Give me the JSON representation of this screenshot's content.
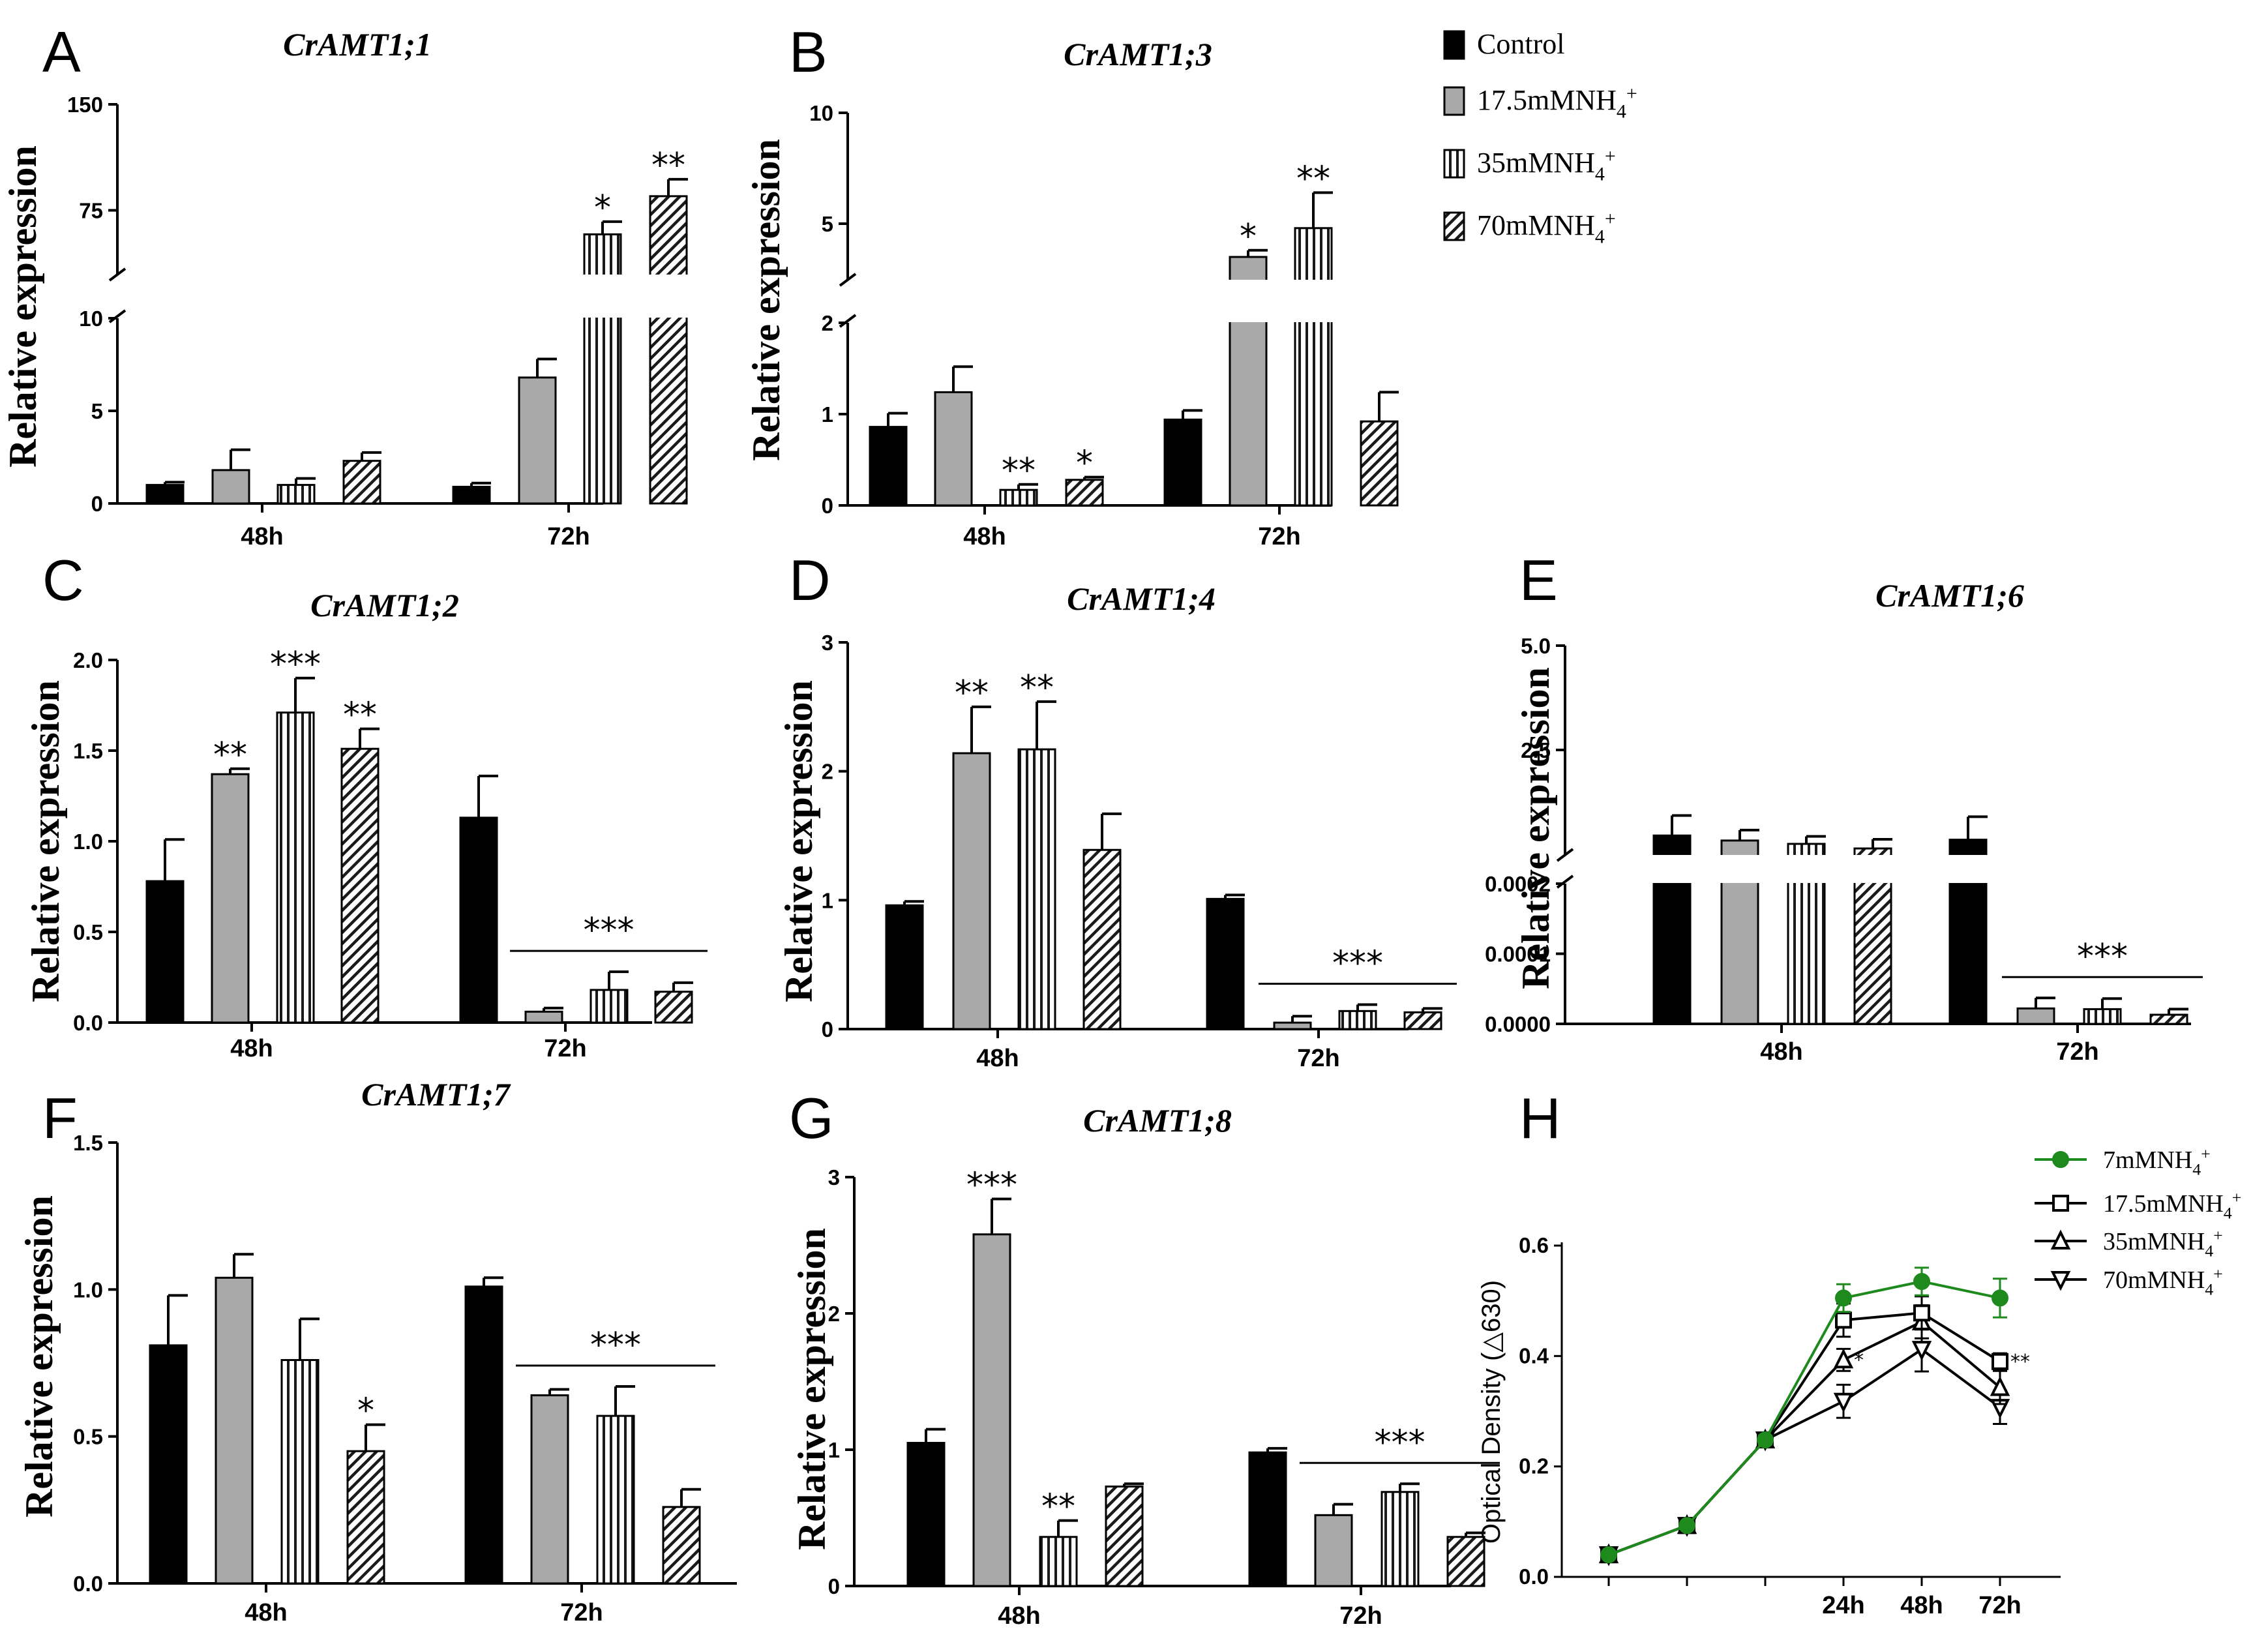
{
  "legend": {
    "items": [
      {
        "label": "Control",
        "fill": "solid-black"
      },
      {
        "label": "17.5mMNH4+",
        "fill": "gray"
      },
      {
        "label": "35mMNH4+",
        "fill": "vertical-stripes"
      },
      {
        "label": "70mMNH4+",
        "fill": "diagonal-stripes"
      }
    ]
  },
  "colors": {
    "control": "#000000",
    "gray": "#a9a9a9",
    "green": "#1e8a1e"
  },
  "chart_data": [
    {
      "panel": "A",
      "type": "bar",
      "title": "CrAMT1;1",
      "ylabel": "Relative expression",
      "categories": [
        "48h",
        "72h"
      ],
      "broken_axis": {
        "low_range": [
          0,
          10
        ],
        "high_range": [
          30,
          150
        ],
        "low_ticks": [
          "0",
          "5",
          "10"
        ],
        "high_ticks": [
          "75",
          "150"
        ]
      },
      "series": [
        {
          "name": "Control",
          "values": [
            1.0,
            0.9
          ],
          "errors": [
            0.15,
            0.2
          ]
        },
        {
          "name": "17.5mMNH4+",
          "values": [
            1.8,
            6.8
          ],
          "errors": [
            1.1,
            1.0
          ]
        },
        {
          "name": "35mMNH4+",
          "values": [
            1.0,
            58
          ],
          "errors": [
            0.35,
            9
          ]
        },
        {
          "name": "70mMNH4+",
          "values": [
            2.3,
            85
          ],
          "errors": [
            0.45,
            12
          ]
        }
      ],
      "significance": [
        {
          "category": "72h",
          "series": "35mMNH4+",
          "label": "*"
        },
        {
          "category": "72h",
          "series": "70mMNH4+",
          "label": "**"
        }
      ]
    },
    {
      "panel": "B",
      "type": "bar",
      "title": "CrAMT1;3",
      "ylabel": "Relative expression",
      "categories": [
        "48h",
        "72h"
      ],
      "broken_axis": {
        "low_range": [
          0,
          2
        ],
        "high_range": [
          2.5,
          10
        ],
        "low_ticks": [
          "0",
          "1",
          "2"
        ],
        "high_ticks": [
          "5",
          "10"
        ]
      },
      "series": [
        {
          "name": "Control",
          "values": [
            0.86,
            0.94
          ],
          "errors": [
            0.15,
            0.1
          ]
        },
        {
          "name": "17.5mMNH4+",
          "values": [
            1.24,
            3.5
          ],
          "errors": [
            0.28,
            0.3
          ]
        },
        {
          "name": "35mMNH4+",
          "values": [
            0.17,
            4.8
          ],
          "errors": [
            0.06,
            1.6
          ]
        },
        {
          "name": "70mMNH4+",
          "values": [
            0.28,
            0.92
          ],
          "errors": [
            0.03,
            0.32
          ]
        }
      ],
      "significance": [
        {
          "category": "48h",
          "series": "35mMNH4+",
          "label": "**"
        },
        {
          "category": "48h",
          "series": "70mMNH4+",
          "label": "*"
        },
        {
          "category": "72h",
          "series": "17.5mMNH4+",
          "label": "*"
        },
        {
          "category": "72h",
          "series": "35mMNH4+",
          "label": "**"
        }
      ]
    },
    {
      "panel": "C",
      "type": "bar",
      "title": "CrAMT1;2",
      "ylabel": "Relative expression",
      "categories": [
        "48h",
        "72h"
      ],
      "ylim": [
        0,
        2.0
      ],
      "yticks": [
        "0.0",
        "0.5",
        "1.0",
        "1.5",
        "2.0"
      ],
      "series": [
        {
          "name": "Control",
          "values": [
            0.78,
            1.13
          ],
          "errors": [
            0.23,
            0.23
          ]
        },
        {
          "name": "17.5mMNH4+",
          "values": [
            1.37,
            0.06
          ],
          "errors": [
            0.03,
            0.02
          ]
        },
        {
          "name": "35mMNH4+",
          "values": [
            1.71,
            0.18
          ],
          "errors": [
            0.19,
            0.1
          ]
        },
        {
          "name": "70mMNH4+",
          "values": [
            1.51,
            0.17
          ],
          "errors": [
            0.11,
            0.05
          ]
        }
      ],
      "significance": [
        {
          "category": "48h",
          "series": "17.5mMNH4+",
          "label": "**"
        },
        {
          "category": "48h",
          "series": "35mMNH4+",
          "label": "***"
        },
        {
          "category": "48h",
          "series": "70mMNH4+",
          "label": "**"
        },
        {
          "category": "72h",
          "group": "treatments",
          "label": "***"
        }
      ]
    },
    {
      "panel": "D",
      "type": "bar",
      "title": "CrAMT1;4",
      "ylabel": "Relative expression",
      "categories": [
        "48h",
        "72h"
      ],
      "ylim": [
        0,
        3
      ],
      "yticks": [
        "0",
        "1",
        "2",
        "3"
      ],
      "series": [
        {
          "name": "Control",
          "values": [
            0.96,
            1.01
          ],
          "errors": [
            0.03,
            0.03
          ]
        },
        {
          "name": "17.5mMNH4+",
          "values": [
            2.14,
            0.05
          ],
          "errors": [
            0.36,
            0.05
          ]
        },
        {
          "name": "35mMNH4+",
          "values": [
            2.17,
            0.14
          ],
          "errors": [
            0.37,
            0.05
          ]
        },
        {
          "name": "70mMNH4+",
          "values": [
            1.39,
            0.13
          ],
          "errors": [
            0.28,
            0.03
          ]
        }
      ],
      "significance": [
        {
          "category": "48h",
          "series": "17.5mMNH4+",
          "label": "**"
        },
        {
          "category": "48h",
          "series": "35mMNH4+",
          "label": "**"
        },
        {
          "category": "72h",
          "group": "treatments",
          "label": "***"
        }
      ]
    },
    {
      "panel": "E",
      "type": "bar",
      "title": "CrAMT1;6",
      "ylabel": "Relative expression",
      "categories": [
        "48h",
        "72h"
      ],
      "broken_axis": {
        "low_range": [
          0,
          0.0002
        ],
        "high_range": [
          0.0,
          5.0
        ],
        "low_ticks": [
          "0.0000",
          "0.0001",
          "0.0002"
        ],
        "high_ticks": [
          "2.5",
          "5.0"
        ]
      },
      "series": [
        {
          "name": "Control",
          "values": [
            0.45,
            0.35
          ],
          "errors": [
            0.48,
            0.55
          ]
        },
        {
          "name": "17.5mMNH4+",
          "values": [
            0.33,
            2.2e-05
          ],
          "errors": [
            0.25,
            1.5e-05
          ]
        },
        {
          "name": "35mMNH4+",
          "values": [
            0.25,
            2.1e-05
          ],
          "errors": [
            0.18,
            1.5e-05
          ]
        },
        {
          "name": "70mMNH4+",
          "values": [
            0.14,
            1.3e-05
          ],
          "errors": [
            0.22,
            8e-06
          ]
        }
      ],
      "significance": [
        {
          "category": "72h",
          "group": "treatments",
          "label": "***"
        }
      ]
    },
    {
      "panel": "F",
      "type": "bar",
      "title": "CrAMT1;7",
      "ylabel": "Relative expression",
      "categories": [
        "48h",
        "72h"
      ],
      "ylim": [
        0,
        1.5
      ],
      "yticks": [
        "0.0",
        "0.5",
        "1.0",
        "1.5"
      ],
      "series": [
        {
          "name": "Control",
          "values": [
            0.81,
            1.01
          ],
          "errors": [
            0.17,
            0.03
          ]
        },
        {
          "name": "17.5mMNH4+",
          "values": [
            1.04,
            0.64
          ],
          "errors": [
            0.08,
            0.02
          ]
        },
        {
          "name": "35mMNH4+",
          "values": [
            0.76,
            0.57
          ],
          "errors": [
            0.14,
            0.1
          ]
        },
        {
          "name": "70mMNH4+",
          "values": [
            0.45,
            0.26
          ],
          "errors": [
            0.09,
            0.06
          ]
        }
      ],
      "significance": [
        {
          "category": "48h",
          "series": "70mMNH4+",
          "label": "*"
        },
        {
          "category": "72h",
          "group": "treatments",
          "label": "***"
        }
      ]
    },
    {
      "panel": "G",
      "type": "bar",
      "title": "CrAMT1;8",
      "ylabel": "Relative expression",
      "categories": [
        "48h",
        "72h"
      ],
      "ylim": [
        0,
        3
      ],
      "yticks": [
        "0",
        "1",
        "2",
        "3"
      ],
      "series": [
        {
          "name": "Control",
          "values": [
            1.05,
            0.98
          ],
          "errors": [
            0.1,
            0.03
          ]
        },
        {
          "name": "17.5mMNH4+",
          "values": [
            2.58,
            0.52
          ],
          "errors": [
            0.26,
            0.08
          ]
        },
        {
          "name": "35mMNH4+",
          "values": [
            0.36,
            0.69
          ],
          "errors": [
            0.12,
            0.06
          ]
        },
        {
          "name": "70mMNH4+",
          "values": [
            0.73,
            0.36
          ],
          "errors": [
            0.02,
            0.03
          ]
        }
      ],
      "significance": [
        {
          "category": "48h",
          "series": "17.5mMNH4+",
          "label": "***"
        },
        {
          "category": "48h",
          "series": "35mMNH4+",
          "label": "**"
        },
        {
          "category": "72h",
          "group": "treatments",
          "label": "***"
        }
      ]
    },
    {
      "panel": "H",
      "type": "line",
      "ylabel": "Optical Density (△630)",
      "x": [
        "",
        "",
        "",
        "24h",
        "48h",
        "72h"
      ],
      "ylim": [
        0,
        0.6
      ],
      "yticks": [
        "0.0",
        "0.2",
        "0.4",
        "0.6"
      ],
      "series": [
        {
          "name": "7mMNH4+",
          "marker": "circle",
          "color": "#1e8a1e",
          "values": [
            0.04,
            0.093,
            0.248,
            0.505,
            0.535,
            0.505
          ],
          "errors": [
            0.005,
            0.006,
            0.008,
            0.025,
            0.025,
            0.035
          ]
        },
        {
          "name": "17.5mMNH4+",
          "marker": "square",
          "color": "#000000",
          "values": [
            0.04,
            0.093,
            0.248,
            0.465,
            0.478,
            0.39
          ],
          "errors": [
            0.005,
            0.006,
            0.008,
            0.03,
            0.03,
            0.015
          ]
        },
        {
          "name": "35mMNH4+",
          "marker": "triangle-up",
          "color": "#000000",
          "values": [
            0.04,
            0.093,
            0.248,
            0.393,
            0.462,
            0.343
          ],
          "errors": [
            0.005,
            0.006,
            0.008,
            0.02,
            0.03,
            0.03
          ]
        },
        {
          "name": "70mMNH4+",
          "marker": "triangle-down",
          "color": "#000000",
          "values": [
            0.04,
            0.093,
            0.248,
            0.318,
            0.412,
            0.307
          ],
          "errors": [
            0.005,
            0.006,
            0.008,
            0.03,
            0.04,
            0.03
          ]
        }
      ],
      "significance": [
        {
          "x": "24h",
          "series": "35mMNH4+",
          "label": "*"
        },
        {
          "x": "72h",
          "series": "17.5mMNH4+",
          "label": "**"
        }
      ]
    }
  ]
}
